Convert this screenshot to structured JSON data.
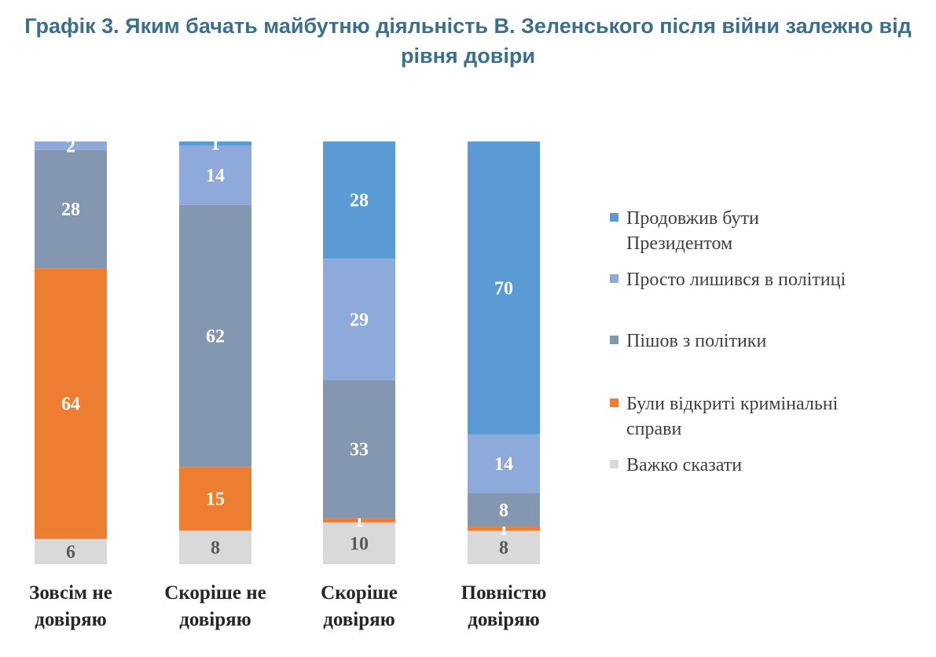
{
  "chart_data": {
    "type": "bar",
    "stacked": true,
    "title_line1": "Графік 3. Яким бачать майбутню діяльність В. Зеленського після війни залежно від",
    "title_line2": "рівня довіри",
    "categories": [
      [
        "Зовсім не",
        "довіряю"
      ],
      [
        "Скоріше не",
        "довіряю"
      ],
      [
        "Скоріше",
        "довіряю"
      ],
      [
        "Повністю",
        "довіряю"
      ]
    ],
    "series": [
      {
        "name": "Продовжив бути Президентом",
        "legend_lines": [
          "Продовжив бути",
          "Президентом"
        ],
        "color": "#5b9bd5",
        "label_color": "#ffffff",
        "values": [
          0,
          1,
          28,
          70
        ]
      },
      {
        "name": "Просто лишився в політиці",
        "legend_lines": [
          "Просто лишився в політиці"
        ],
        "color": "#8eaadb",
        "label_color": "#ffffff",
        "values": [
          2,
          14,
          29,
          14
        ]
      },
      {
        "name": "Пішов з політики",
        "legend_lines": [
          "Пішов з політики"
        ],
        "color": "#8497b0",
        "label_color": "#ffffff",
        "values": [
          28,
          62,
          33,
          8
        ]
      },
      {
        "name": "Були відкриті кримінальні справи",
        "legend_lines": [
          "Були відкриті кримінальні",
          "справи"
        ],
        "color": "#ed7d31",
        "label_color": "#ffffff",
        "values": [
          64,
          15,
          1,
          1
        ]
      },
      {
        "name": "Важко сказати",
        "legend_lines": [
          "Важко сказати"
        ],
        "color": "#d9d9d9",
        "label_color": "#595959",
        "values": [
          6,
          8,
          10,
          8
        ]
      }
    ],
    "ylim": [
      0,
      100
    ],
    "legend_position": "right",
    "grid": false
  }
}
